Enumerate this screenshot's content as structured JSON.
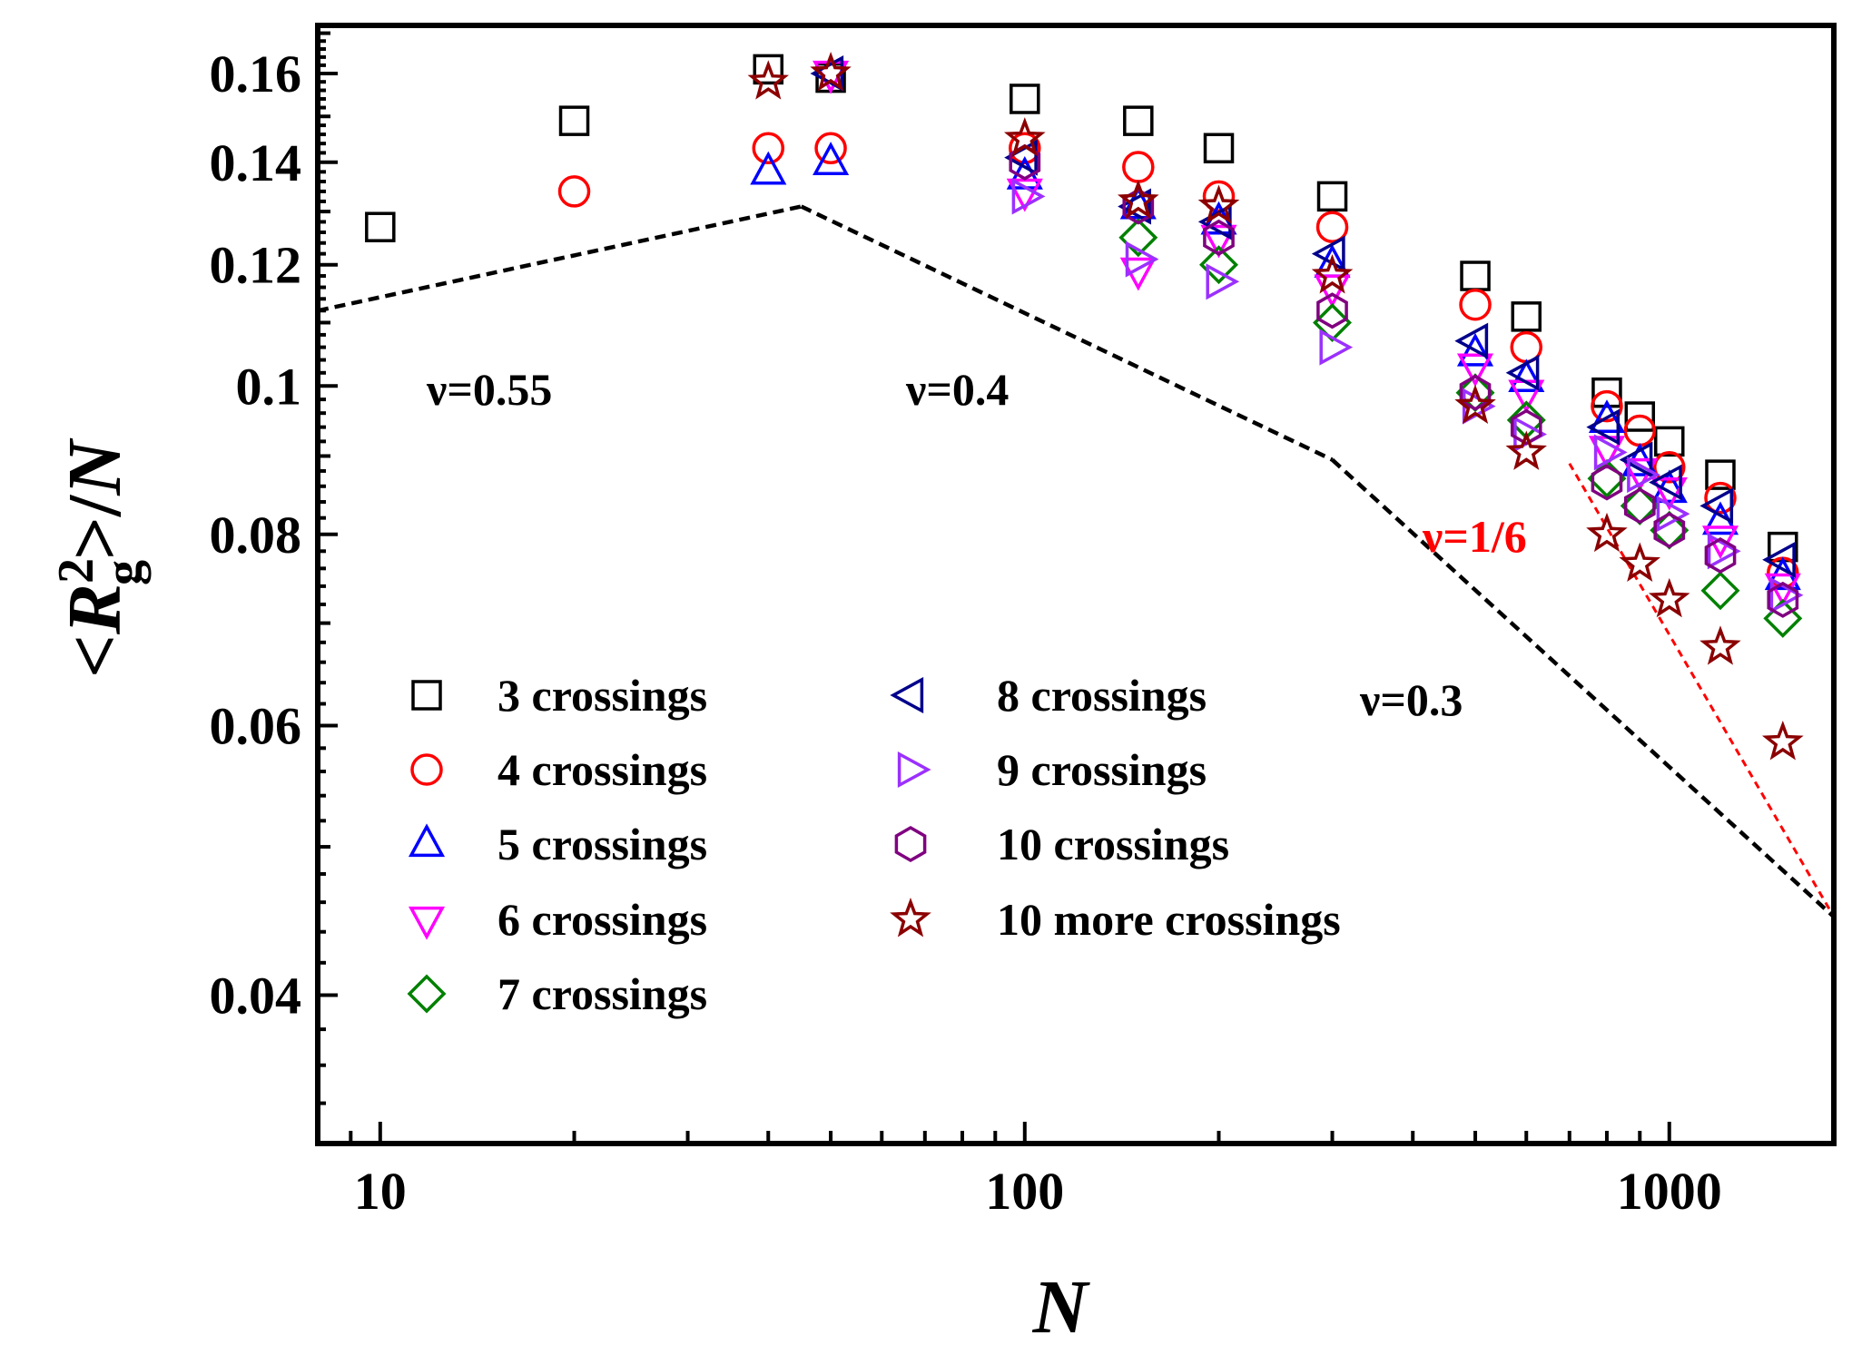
{
  "chart_data": {
    "type": "scatter",
    "xscale": "log",
    "yscale": "log",
    "xlim": [
      8,
      1800
    ],
    "ylim": [
      0.032,
      0.172
    ],
    "xlabel": "N",
    "ylabel": {
      "open": "<",
      "R": "R",
      "sup": "2",
      "sub": "g",
      "close": ">/",
      "N": "N"
    },
    "xticks": [
      {
        "value": 10,
        "label": "10"
      },
      {
        "value": 100,
        "label": "100"
      },
      {
        "value": 1000,
        "label": "1000"
      }
    ],
    "yticks": [
      {
        "value": 0.04,
        "label": "0.04"
      },
      {
        "value": 0.06,
        "label": "0.06"
      },
      {
        "value": 0.08,
        "label": "0.08"
      },
      {
        "value": 0.1,
        "label": "0.1"
      },
      {
        "value": 0.12,
        "label": "0.12"
      },
      {
        "value": 0.14,
        "label": "0.14"
      },
      {
        "value": 0.16,
        "label": "0.16"
      }
    ],
    "series": [
      {
        "name": "3 crossings",
        "marker": "square",
        "color": "#000000",
        "points": [
          [
            10,
            0.127
          ],
          [
            20,
            0.149
          ],
          [
            40,
            0.161
          ],
          [
            50,
            0.159
          ],
          [
            100,
            0.154
          ],
          [
            150,
            0.149
          ],
          [
            200,
            0.143
          ],
          [
            300,
            0.133
          ],
          [
            500,
            0.118
          ],
          [
            600,
            0.111
          ],
          [
            800,
            0.099
          ],
          [
            900,
            0.0955
          ],
          [
            1000,
            0.092
          ],
          [
            1200,
            0.0875
          ],
          [
            1500,
            0.0785
          ]
        ]
      },
      {
        "name": "4 crossings",
        "marker": "circle",
        "color": "#ff0000",
        "points": [
          [
            20,
            0.134
          ],
          [
            40,
            0.143
          ],
          [
            50,
            0.143
          ],
          [
            100,
            0.143
          ],
          [
            150,
            0.139
          ],
          [
            200,
            0.133
          ],
          [
            300,
            0.127
          ],
          [
            500,
            0.113
          ],
          [
            600,
            0.106
          ],
          [
            800,
            0.097
          ],
          [
            900,
            0.0935
          ],
          [
            1000,
            0.0885
          ],
          [
            1200,
            0.0845
          ],
          [
            1500,
            0.0755
          ]
        ]
      },
      {
        "name": "5 crossings",
        "marker": "triangle-up",
        "color": "#0000ff",
        "points": [
          [
            40,
            0.138
          ],
          [
            50,
            0.14
          ],
          [
            100,
            0.137
          ],
          [
            150,
            0.131
          ],
          [
            200,
            0.128
          ],
          [
            300,
            0.12
          ],
          [
            500,
            0.105
          ],
          [
            600,
            0.101
          ],
          [
            800,
            0.095
          ],
          [
            900,
            0.089
          ],
          [
            1000,
            0.0855
          ],
          [
            1200,
            0.0815
          ],
          [
            1500,
            0.075
          ]
        ]
      },
      {
        "name": "6 crossings",
        "marker": "triangle-down",
        "color": "#ff00ff",
        "points": [
          [
            50,
            0.16
          ],
          [
            100,
            0.134
          ],
          [
            150,
            0.119
          ],
          [
            200,
            0.125
          ],
          [
            300,
            0.116
          ],
          [
            500,
            0.103
          ],
          [
            600,
            0.099
          ],
          [
            800,
            0.091
          ],
          [
            900,
            0.088
          ],
          [
            1000,
            0.0855
          ],
          [
            1200,
            0.0795
          ],
          [
            1500,
            0.074
          ]
        ]
      },
      {
        "name": "7 crossings",
        "marker": "diamond",
        "color": "#008000",
        "points": [
          [
            150,
            0.125
          ],
          [
            200,
            0.12
          ],
          [
            300,
            0.11
          ],
          [
            500,
            0.099
          ],
          [
            600,
            0.095
          ],
          [
            800,
            0.087
          ],
          [
            900,
            0.0835
          ],
          [
            1000,
            0.0805
          ],
          [
            1200,
            0.0735
          ],
          [
            1500,
            0.0705
          ]
        ]
      },
      {
        "name": "8 crossings",
        "marker": "triangle-left",
        "color": "#00008b",
        "points": [
          [
            50,
            0.16
          ],
          [
            100,
            0.141
          ],
          [
            150,
            0.131
          ],
          [
            200,
            0.128
          ],
          [
            300,
            0.122
          ],
          [
            500,
            0.107
          ],
          [
            600,
            0.102
          ],
          [
            800,
            0.094
          ],
          [
            900,
            0.0895
          ],
          [
            1000,
            0.0865
          ],
          [
            1200,
            0.0835
          ],
          [
            1500,
            0.077
          ]
        ]
      },
      {
        "name": "9 crossings",
        "marker": "triangle-right",
        "color": "#9b30ff",
        "points": [
          [
            100,
            0.133
          ],
          [
            150,
            0.121
          ],
          [
            200,
            0.117
          ],
          [
            300,
            0.106
          ],
          [
            500,
            0.097
          ],
          [
            600,
            0.093
          ],
          [
            800,
            0.0905
          ],
          [
            900,
            0.0875
          ],
          [
            1000,
            0.0825
          ],
          [
            1200,
            0.078
          ],
          [
            1500,
            0.073
          ]
        ]
      },
      {
        "name": "10 crossings",
        "marker": "hexagon",
        "color": "#800080",
        "points": [
          [
            100,
            0.14
          ],
          [
            150,
            0.131
          ],
          [
            200,
            0.125
          ],
          [
            300,
            0.112
          ],
          [
            500,
            0.099
          ],
          [
            600,
            0.094
          ],
          [
            800,
            0.0865
          ],
          [
            900,
            0.0835
          ],
          [
            1000,
            0.0805
          ],
          [
            1200,
            0.0775
          ],
          [
            1500,
            0.0725
          ]
        ]
      },
      {
        "name": "10 more crossings",
        "marker": "star",
        "color": "#8b0000",
        "points": [
          [
            40,
            0.158
          ],
          [
            50,
            0.16
          ],
          [
            100,
            0.145
          ],
          [
            150,
            0.132
          ],
          [
            200,
            0.131
          ],
          [
            300,
            0.118
          ],
          [
            500,
            0.097
          ],
          [
            600,
            0.0905
          ],
          [
            800,
            0.08
          ],
          [
            900,
            0.0765
          ],
          [
            1000,
            0.0725
          ],
          [
            1200,
            0.0675
          ],
          [
            1500,
            0.0585
          ]
        ]
      }
    ],
    "reference_lines": [
      {
        "label": "ν=0.55",
        "color": "#000000",
        "points": [
          [
            8,
            0.112
          ],
          [
            45,
            0.131
          ]
        ]
      },
      {
        "label": "ν=0.4",
        "color": "#000000",
        "points": [
          [
            45,
            0.131
          ],
          [
            300,
            0.0895
          ]
        ]
      },
      {
        "label": "ν=0.3",
        "color": "#000000",
        "points": [
          [
            300,
            0.0895
          ],
          [
            1800,
            0.045
          ]
        ]
      },
      {
        "label": "ν=1/6",
        "color": "#ff0000",
        "points": [
          [
            700,
            0.089
          ],
          [
            1800,
            0.045
          ]
        ]
      }
    ],
    "annotations": [
      {
        "text": "ν=0.55",
        "color": "#000000"
      },
      {
        "text": "ν=0.4",
        "color": "#000000"
      },
      {
        "text": "ν=0.3",
        "color": "#000000"
      },
      {
        "text": "ν=1/6",
        "color": "#ff0000"
      }
    ],
    "legend_placement": "lower-left, two columns"
  }
}
